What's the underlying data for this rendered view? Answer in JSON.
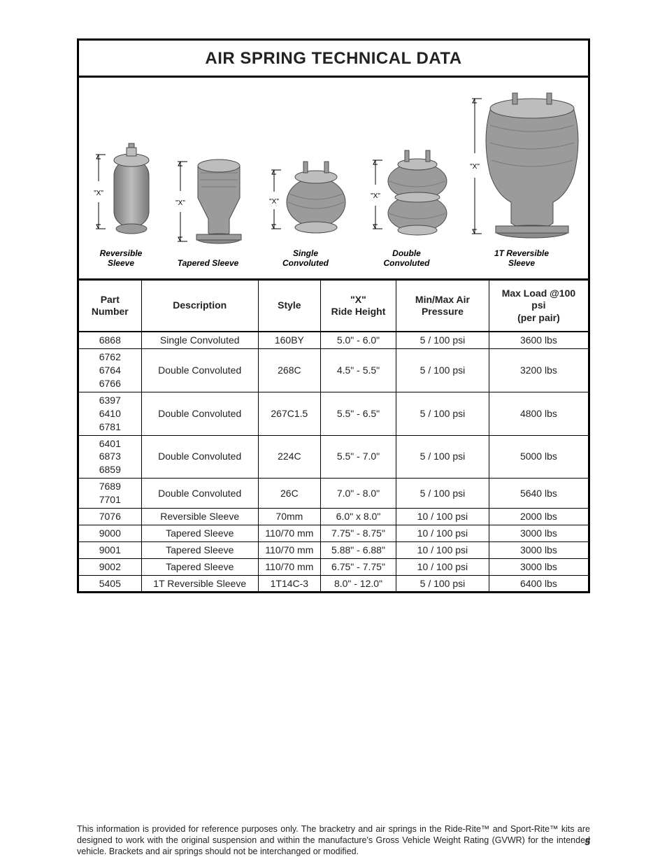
{
  "title": "AIR SPRING TECHNICAL DATA",
  "diagrams": {
    "reversible": {
      "label": "Reversible\nSleeve",
      "x": "\"X\""
    },
    "tapered": {
      "label": "Tapered Sleeve",
      "x": "\"X\""
    },
    "single": {
      "label": "Single\nConvoluted",
      "x": "\"X\""
    },
    "double": {
      "label": "Double\nConvoluted",
      "x": "\"X\""
    },
    "onet": {
      "label": "1T Reversible\nSleeve",
      "x": "\"X\""
    }
  },
  "table": {
    "headers": {
      "part": "Part\nNumber",
      "desc": "Description",
      "style": "Style",
      "ride": "\"X\"\nRide Height",
      "press": "Min/Max Air\nPressure",
      "load": "Max Load @100 psi\n(per pair)"
    },
    "rows": [
      {
        "parts": [
          "6868"
        ],
        "desc": "Single Convoluted",
        "style": "160BY",
        "ride": "5.0\" - 6.0\"",
        "press": "5 / 100 psi",
        "load": "3600 lbs"
      },
      {
        "parts": [
          "6762",
          "6764",
          "6766"
        ],
        "desc": "Double Convoluted",
        "style": "268C",
        "ride": "4.5\" - 5.5\"",
        "press": "5 / 100 psi",
        "load": "3200 lbs"
      },
      {
        "parts": [
          "6397",
          "6410",
          "6781"
        ],
        "desc": "Double Convoluted",
        "style": "267C1.5",
        "ride": "5.5\" - 6.5\"",
        "press": "5 / 100 psi",
        "load": "4800 lbs"
      },
      {
        "parts": [
          "6401",
          "6873",
          "6859"
        ],
        "desc": "Double Convoluted",
        "style": "224C",
        "ride": "5.5\" - 7.0\"",
        "press": "5 / 100 psi",
        "load": "5000 lbs"
      },
      {
        "parts": [
          "7689",
          "7701"
        ],
        "desc": "Double Convoluted",
        "style": "26C",
        "ride": "7.0\" - 8.0\"",
        "press": "5 / 100 psi",
        "load": "5640 lbs"
      },
      {
        "parts": [
          "7076"
        ],
        "desc": "Reversible Sleeve",
        "style": "70mm",
        "ride": "6.0\" x 8.0\"",
        "press": "10 / 100 psi",
        "load": "2000 lbs"
      },
      {
        "parts": [
          "9000"
        ],
        "desc": "Tapered Sleeve",
        "style": "110/70 mm",
        "ride": "7.75\" - 8.75\"",
        "press": "10 / 100 psi",
        "load": "3000 lbs"
      },
      {
        "parts": [
          "9001"
        ],
        "desc": "Tapered Sleeve",
        "style": "110/70 mm",
        "ride": "5.88\" - 6.88\"",
        "press": "10 / 100 psi",
        "load": "3000 lbs"
      },
      {
        "parts": [
          "9002"
        ],
        "desc": "Tapered Sleeve",
        "style": "110/70 mm",
        "ride": "6.75\" - 7.75\"",
        "press": "10 / 100 psi",
        "load": "3000 lbs"
      },
      {
        "parts": [
          "5405"
        ],
        "desc": "1T Reversible Sleeve",
        "style": "1T14C-3",
        "ride": "8.0\" - 12.0\"",
        "press": "5 / 100 psi",
        "load": "6400 lbs"
      }
    ]
  },
  "footnote": "This information is provided for reference purposes only. The bracketry and air springs in the Ride-Rite™ and Sport-Rite™ kits are designed to work with the original suspension and within the manufacture's Gross Vehicle Weight Rating (GVWR) for the intended vehicle. Brackets and air springs should not be interchanged or modified.",
  "pagenum": "5",
  "style": {
    "colors": {
      "spring_fill": "#9b9b9b",
      "spring_stroke": "#4a4a4a",
      "outline": "#000000",
      "text": "#000000",
      "dim_stroke": "#000000",
      "bg": "#ffffff"
    },
    "widths": {
      "col_part": 90,
      "col_desc": 170,
      "col_style": 90,
      "col_ride": 110,
      "col_press": 135,
      "col_load": 145
    }
  }
}
